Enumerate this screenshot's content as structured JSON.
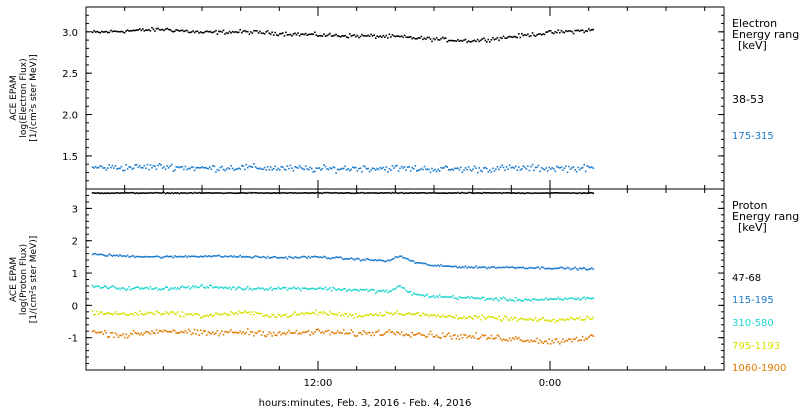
{
  "xaxis": {
    "label": "hours:minutes, Feb.  3, 2016 - Feb.  4, 2016",
    "ticks": [
      {
        "t": 12,
        "label": "12:00"
      },
      {
        "t": 24,
        "label": "0:00"
      }
    ]
  },
  "chart_data": [
    {
      "type": "scatter",
      "panel": "electron",
      "ylabel_lines": [
        "ACE EPAM",
        "log(Electron Flux)",
        "[1/(cm²s ster MeV)]"
      ],
      "ylim": [
        1.1,
        3.3
      ],
      "yticks": [
        {
          "v": 3.0,
          "label": "3.0"
        },
        {
          "v": 2.5,
          "label": "2.5"
        },
        {
          "v": 2.0,
          "label": "2.0"
        },
        {
          "v": 1.5,
          "label": "1.5"
        }
      ],
      "legend_title": [
        "Electron",
        "Energy range",
        "[keV]"
      ],
      "x_range_hours": [
        0,
        33
      ],
      "data_span_hours": [
        0.3,
        26.2
      ],
      "series": [
        {
          "name": "38-53",
          "color": "#000000",
          "x": [
            0.3,
            2,
            4,
            6,
            8,
            10,
            12,
            14,
            16,
            18,
            20,
            22,
            24,
            26.2
          ],
          "y": [
            3.0,
            3.02,
            3.04,
            3.0,
            3.01,
            2.99,
            2.97,
            2.96,
            2.95,
            2.92,
            2.9,
            2.95,
            3.0,
            3.03
          ]
        },
        {
          "name": "175-315",
          "color": "#1a7acc",
          "x": [
            0.3,
            2,
            4,
            6,
            8,
            10,
            12,
            14,
            16,
            18,
            20,
            22,
            24,
            26.2
          ],
          "y": [
            1.37,
            1.37,
            1.38,
            1.36,
            1.37,
            1.36,
            1.35,
            1.36,
            1.36,
            1.35,
            1.35,
            1.36,
            1.36,
            1.36
          ]
        }
      ]
    },
    {
      "type": "scatter",
      "panel": "proton",
      "ylabel_lines": [
        "ACE EPAM",
        "log(Proton Flux)",
        "[1/(cm²s ster MeV)]"
      ],
      "ylim": [
        -2,
        3.6
      ],
      "yticks": [
        {
          "v": 3,
          "label": "3"
        },
        {
          "v": 2,
          "label": "2"
        },
        {
          "v": 1,
          "label": "1"
        },
        {
          "v": 0,
          "label": "0"
        },
        {
          "v": -1,
          "label": "-1"
        }
      ],
      "legend_title": [
        "Proton",
        "Energy range",
        "[keV]"
      ],
      "x_range_hours": [
        0,
        33
      ],
      "data_span_hours": [
        0.3,
        26.2
      ],
      "series": [
        {
          "name": "47-68",
          "color": "#000000",
          "x": [
            0.3,
            2,
            4,
            6,
            8,
            10,
            12,
            14,
            16,
            18,
            20,
            22,
            24,
            26.2
          ],
          "y": [
            3.5,
            3.5,
            3.5,
            3.5,
            3.5,
            3.5,
            3.5,
            3.5,
            3.5,
            3.5,
            3.5,
            3.5,
            3.5,
            3.5
          ]
        },
        {
          "name": "115-195",
          "color": "#1a7acc",
          "x": [
            0.3,
            2,
            4,
            6,
            8,
            10,
            12,
            14,
            15.6,
            16.2,
            17,
            18,
            20,
            22,
            24,
            26.2
          ],
          "y": [
            1.6,
            1.55,
            1.52,
            1.55,
            1.53,
            1.5,
            1.52,
            1.45,
            1.4,
            1.55,
            1.35,
            1.25,
            1.2,
            1.2,
            1.18,
            1.15
          ]
        },
        {
          "name": "310-580",
          "color": "#1fd6cf",
          "x": [
            0.3,
            2,
            4,
            6,
            8,
            10,
            12,
            14,
            15.6,
            16.2,
            17,
            18,
            20,
            22,
            24,
            26.2
          ],
          "y": [
            0.6,
            0.55,
            0.55,
            0.6,
            0.55,
            0.55,
            0.55,
            0.5,
            0.45,
            0.6,
            0.35,
            0.3,
            0.25,
            0.2,
            0.2,
            0.25
          ]
        },
        {
          "name": "795-1193",
          "color": "#d6e000",
          "x": [
            0.3,
            2,
            4,
            6,
            8,
            10,
            12,
            14,
            16,
            18,
            20,
            22,
            24,
            26.2
          ],
          "y": [
            -0.2,
            -0.25,
            -0.2,
            -0.3,
            -0.2,
            -0.3,
            -0.2,
            -0.3,
            -0.2,
            -0.3,
            -0.35,
            -0.4,
            -0.45,
            -0.35
          ]
        },
        {
          "name": "1060-1900",
          "color": "#e07a00",
          "x": [
            0.3,
            2,
            4,
            6,
            8,
            10,
            12,
            14,
            16,
            18,
            20,
            22,
            24,
            26.2
          ],
          "y": [
            -0.8,
            -0.9,
            -0.75,
            -0.85,
            -0.8,
            -0.85,
            -0.8,
            -0.85,
            -0.8,
            -0.9,
            -0.95,
            -1.0,
            -1.1,
            -0.95
          ]
        }
      ]
    }
  ]
}
